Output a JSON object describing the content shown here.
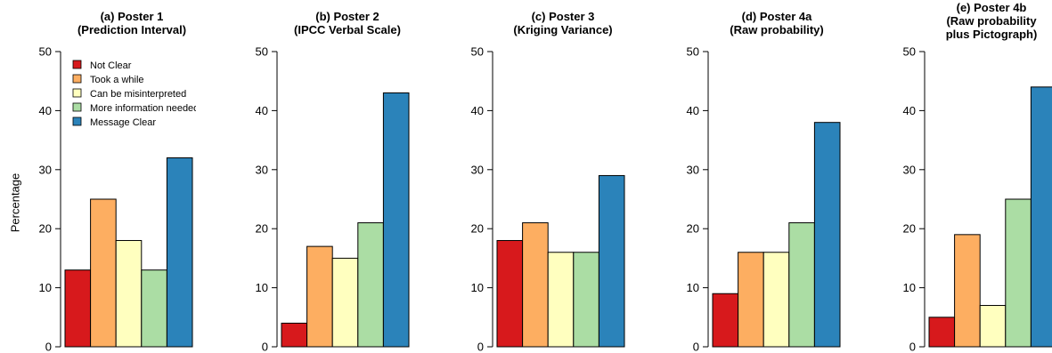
{
  "y_axis_label": "Percentage",
  "legend": [
    {
      "label": "Not Clear",
      "color": "#d7191c"
    },
    {
      "label": "Took a while",
      "color": "#fdae61"
    },
    {
      "label": "Can be misinterpreted",
      "color": "#ffffbf"
    },
    {
      "label": "More information needed",
      "color": "#abdda4"
    },
    {
      "label": "Message Clear",
      "color": "#2b83ba"
    }
  ],
  "chart_data": [
    {
      "type": "bar",
      "title": "(a) Poster 1\n(Prediction Interval)",
      "categories": [
        "Not Clear",
        "Took a while",
        "Can be misinterpreted",
        "More information needed",
        "Message Clear"
      ],
      "values": [
        13,
        25,
        18,
        13,
        32
      ],
      "ylabel": "Percentage",
      "ylim": [
        0,
        50
      ],
      "yticks": [
        0,
        10,
        20,
        30,
        40,
        50
      ],
      "legend": "top-left"
    },
    {
      "type": "bar",
      "title": "(b) Poster 2\n(IPCC Verbal Scale)",
      "categories": [
        "Not Clear",
        "Took a while",
        "Can be misinterpreted",
        "More information needed",
        "Message Clear"
      ],
      "values": [
        4,
        17,
        15,
        21,
        43
      ],
      "ylim": [
        0,
        50
      ],
      "yticks": [
        0,
        10,
        20,
        30,
        40,
        50
      ]
    },
    {
      "type": "bar",
      "title": "(c) Poster 3\n(Kriging Variance)",
      "categories": [
        "Not Clear",
        "Took a while",
        "Can be misinterpreted",
        "More information needed",
        "Message Clear"
      ],
      "values": [
        18,
        21,
        16,
        16,
        29
      ],
      "ylim": [
        0,
        50
      ],
      "yticks": [
        0,
        10,
        20,
        30,
        40,
        50
      ]
    },
    {
      "type": "bar",
      "title": "(d) Poster 4a\n(Raw probability)",
      "categories": [
        "Not Clear",
        "Took a while",
        "Can be misinterpreted",
        "More information needed",
        "Message Clear"
      ],
      "values": [
        9,
        16,
        16,
        21,
        38
      ],
      "ylim": [
        0,
        50
      ],
      "yticks": [
        0,
        10,
        20,
        30,
        40,
        50
      ]
    },
    {
      "type": "bar",
      "title": "(e) Poster 4b\n(Raw probability\nplus Pictograph)",
      "categories": [
        "Not Clear",
        "Took a while",
        "Can be misinterpreted",
        "More information needed",
        "Message Clear"
      ],
      "values": [
        5,
        19,
        7,
        25,
        44
      ],
      "ylim": [
        0,
        50
      ],
      "yticks": [
        0,
        10,
        20,
        30,
        40,
        50
      ]
    }
  ]
}
